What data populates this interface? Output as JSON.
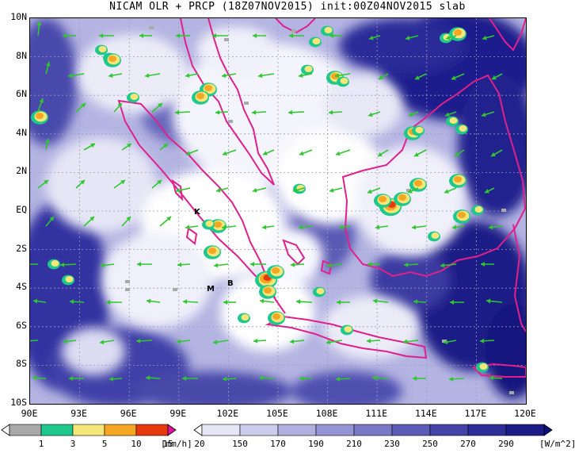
{
  "title": "NICAM  OLR  +  PRCP  (18Z07NOV2015)  init:00Z04NOV2015  slab",
  "axes": {
    "y_ticks": [
      "10N",
      "8N",
      "6N",
      "4N",
      "2N",
      "EQ",
      "2S",
      "4S",
      "6S",
      "8S",
      "10S"
    ],
    "x_ticks": [
      "90E",
      "93E",
      "96E",
      "99E",
      "102E",
      "105E",
      "108E",
      "111E",
      "114E",
      "117E",
      "120E"
    ]
  },
  "place_labels": [
    "K",
    "M",
    "B"
  ],
  "colorbars": {
    "precip": {
      "unit": "[mm/h]",
      "labels": [
        "1",
        "3",
        "5",
        "10",
        "15",
        "20"
      ],
      "colors": [
        "#ffffff",
        "#a8a8a8",
        "#1ec88c",
        "#f6e67a",
        "#f5a623",
        "#e8380d",
        "#e0129b"
      ]
    },
    "olr": {
      "unit": "[W/m^2]",
      "labels": [
        "150",
        "170",
        "190",
        "210",
        "230",
        "250",
        "270",
        "290"
      ],
      "colors": [
        "#ffffff",
        "#e6e6f6",
        "#ccccec",
        "#b0b0e0",
        "#9494d4",
        "#7878c6",
        "#5c5cb6",
        "#4444a8",
        "#2e2e98",
        "#1c1c88",
        "#0e0e7c"
      ]
    }
  },
  "map_colors": {
    "coastline": "#e0208c",
    "wind_vector": "#2ec82e",
    "olr_low": "#ffffff",
    "olr_high": "#14147e"
  },
  "features": {
    "cloud_patch_icon": "olr-cloud",
    "rain_cell_icon": "precip-cell",
    "wind_arrow_icon": "wind-vector-arrow"
  }
}
